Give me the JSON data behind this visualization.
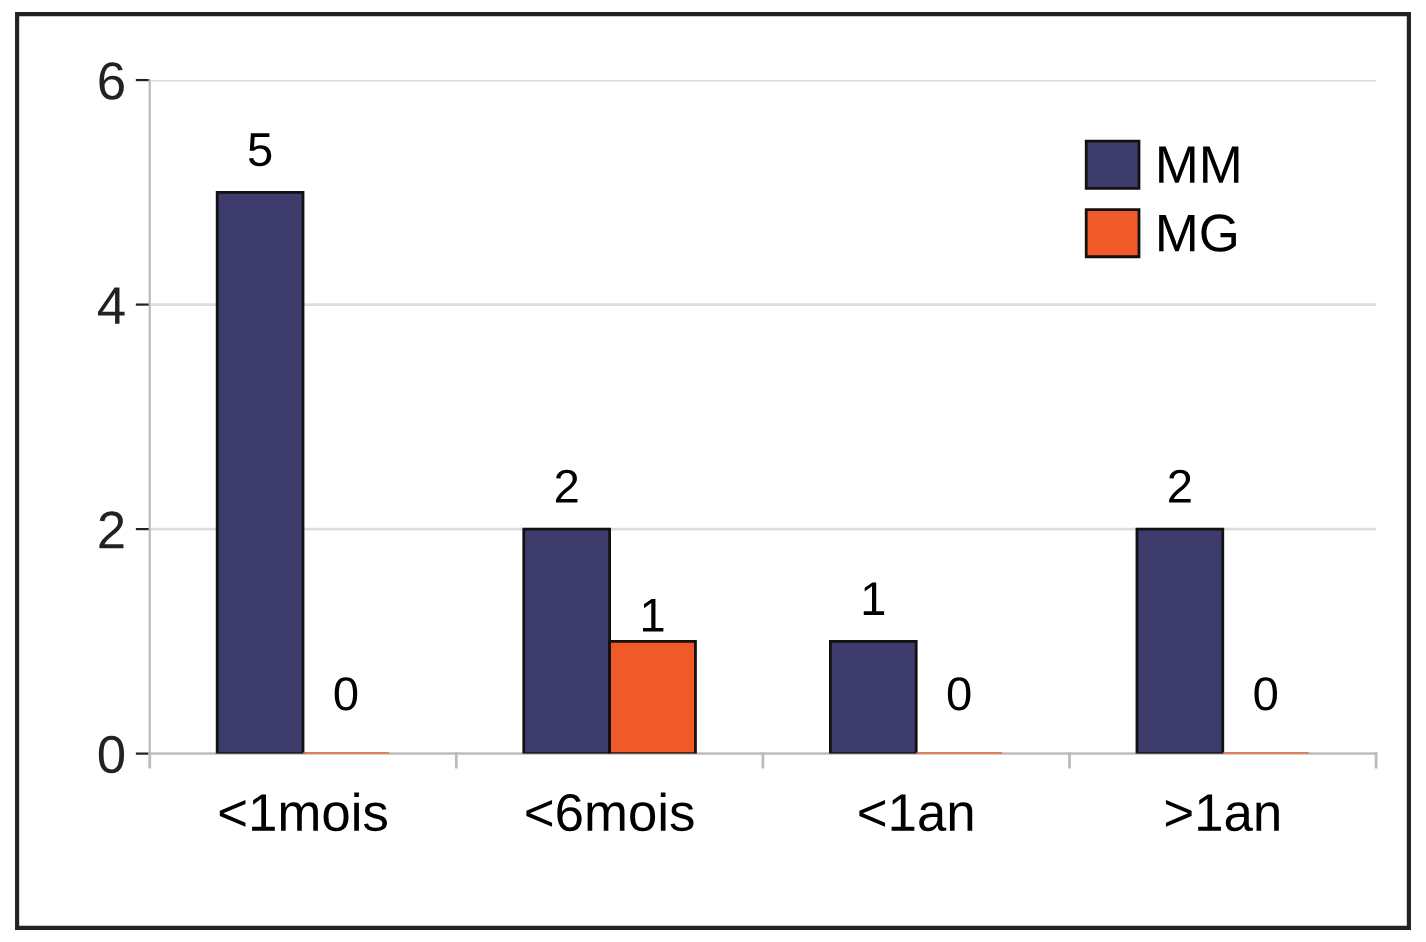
{
  "chart_data": {
    "type": "bar",
    "categories": [
      "<1mois",
      "<6mois",
      "<1an",
      ">1an"
    ],
    "series": [
      {
        "name": "MM",
        "color": "#3d3c6c",
        "values": [
          5,
          2,
          1,
          2
        ]
      },
      {
        "name": "MG",
        "color": "#f05a28",
        "values": [
          0,
          1,
          0,
          0
        ]
      }
    ],
    "ylim": [
      0,
      6
    ],
    "yticks": [
      0,
      2,
      4,
      6
    ],
    "grid": "y",
    "legend": "top right",
    "data_labels": true
  }
}
